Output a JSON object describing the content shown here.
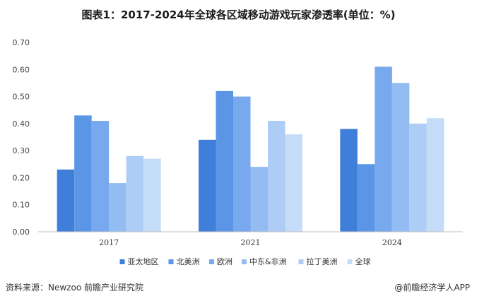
{
  "page": {
    "source": "资料来源：Newzoo 前瞻产业研究院",
    "brand": "@前瞻经济学人APP"
  },
  "colors": {
    "series": [
      "#3f7fd9",
      "#5b96e6",
      "#78a9ee",
      "#93bcf3",
      "#adcdf6",
      "#c5dcf9"
    ],
    "grid": "#d9d9d9",
    "axis": "#bfbfbf"
  },
  "chart_data": {
    "type": "bar",
    "title": "图表1：2017-2024年全球各区域移动游戏玩家渗透率(单位：%)",
    "categories": [
      "2017",
      "2021",
      "2024"
    ],
    "series": [
      {
        "name": "亚太地区",
        "values": [
          0.23,
          0.34,
          0.38
        ]
      },
      {
        "name": "北美洲",
        "values": [
          0.43,
          0.52,
          0.25
        ]
      },
      {
        "name": "欧洲",
        "values": [
          0.41,
          0.5,
          0.61
        ]
      },
      {
        "name": "中东&非洲",
        "values": [
          0.18,
          0.24,
          0.55
        ]
      },
      {
        "name": "拉丁美洲",
        "values": [
          0.28,
          0.41,
          0.4
        ]
      },
      {
        "name": "全球",
        "values": [
          0.27,
          0.36,
          0.42
        ]
      }
    ],
    "ylim": [
      0,
      0.7
    ],
    "yticks": [
      "0.00",
      "0.10",
      "0.20",
      "0.30",
      "0.40",
      "0.50",
      "0.60",
      "0.70"
    ],
    "grid": false,
    "legend": "bottom-center"
  }
}
